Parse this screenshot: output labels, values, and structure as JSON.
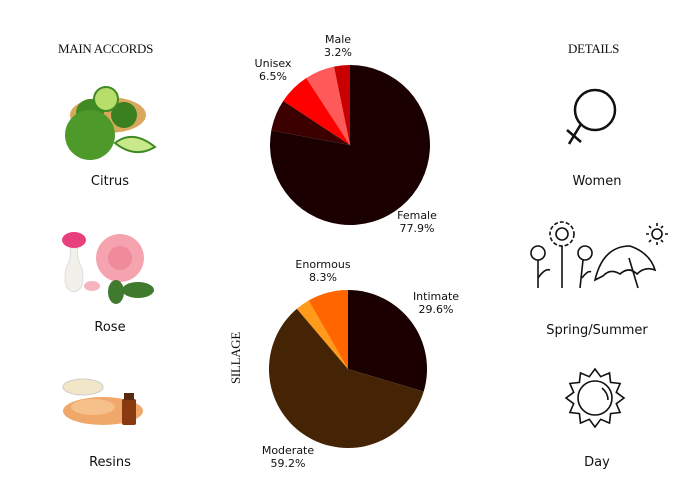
{
  "main_accords": {
    "title": "MAIN ACCORDS",
    "items": [
      {
        "label": "Citrus",
        "icon": "bergamot-image"
      },
      {
        "label": "Rose",
        "icon": "rose-image"
      },
      {
        "label": "Resins",
        "icon": "resins-image"
      }
    ]
  },
  "details": {
    "title": "DETAILS",
    "items": [
      {
        "label": "Women",
        "icon": "female-symbol-icon"
      },
      {
        "label": "Spring/Summer",
        "icon": "flowers-umbrella-icon"
      },
      {
        "label": "Day",
        "icon": "sun-icon"
      }
    ]
  },
  "chart_data": [
    {
      "type": "pie",
      "title": "",
      "start": "top",
      "direction": "clockwise",
      "slices": [
        {
          "name": "Female",
          "value": 77.9,
          "label": "77.9%",
          "color": "#1a0000"
        },
        {
          "name": "",
          "value": 6.4,
          "label": "",
          "color": "#3d0000"
        },
        {
          "name": "Unisex",
          "value": 6.5,
          "label": "6.5%",
          "color": "#ff0000"
        },
        {
          "name": "",
          "value": 6.0,
          "label": "",
          "color": "#ff5a5a"
        },
        {
          "name": "Male",
          "value": 3.2,
          "label": "3.2%",
          "color": "#c80000"
        }
      ]
    },
    {
      "type": "pie",
      "title": "SILLAGE",
      "start": "top",
      "direction": "clockwise",
      "slices": [
        {
          "name": "Intimate",
          "value": 29.6,
          "label": "29.6%",
          "color": "#1a0000"
        },
        {
          "name": "Moderate",
          "value": 59.2,
          "label": "59.2%",
          "color": "#452305"
        },
        {
          "name": "",
          "value": 2.9,
          "label": "",
          "color": "#ff9a1a"
        },
        {
          "name": "Enormous",
          "value": 8.3,
          "label": "8.3%",
          "color": "#ff6600"
        }
      ]
    }
  ]
}
